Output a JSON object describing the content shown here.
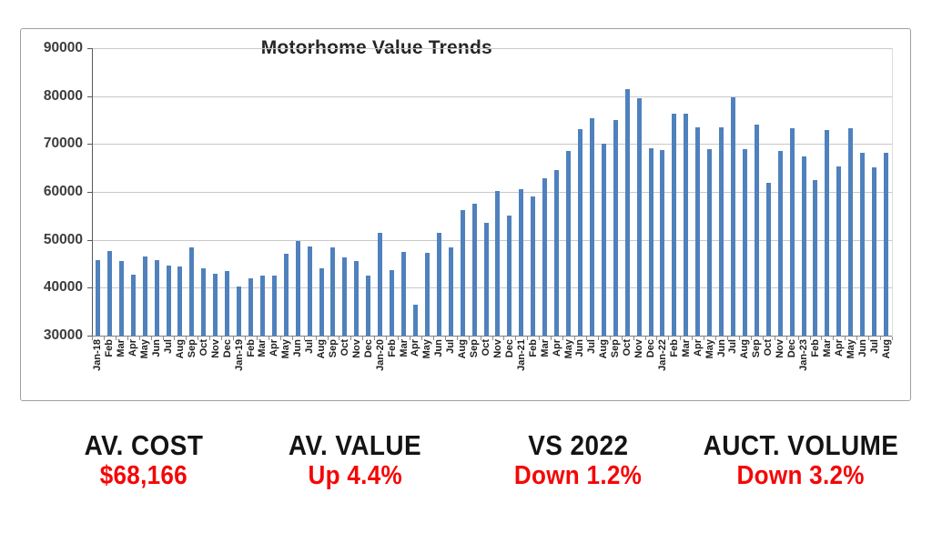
{
  "chart_data": {
    "type": "bar",
    "title": "Motorhome Value Trends",
    "xlabel": "",
    "ylabel": "",
    "ylim": [
      30000,
      90000
    ],
    "ytick_step": 10000,
    "yticks": [
      90000,
      80000,
      70000,
      60000,
      50000,
      40000,
      30000
    ],
    "grid": true,
    "legend_position": "none",
    "bar_color": "#4f81bd",
    "categories": [
      "Jan-18",
      "Feb",
      "Mar",
      "Apr",
      "May",
      "Jun",
      "Jul",
      "Aug",
      "Sep",
      "Oct",
      "Nov",
      "Dec",
      "Jan-19",
      "Feb",
      "Mar",
      "Apr",
      "May",
      "Jun",
      "Jul",
      "Aug",
      "Sep",
      "Oct",
      "Nov",
      "Dec",
      "Jan-20",
      "Feb",
      "Mar",
      "Apr",
      "May",
      "Jun",
      "Jul",
      "Aug",
      "Sep",
      "Oct",
      "Nov",
      "Dec",
      "Jan-21",
      "Feb",
      "Mar",
      "Apr",
      "May",
      "Jun",
      "Jul",
      "Aug",
      "Sep",
      "Oct",
      "Nov",
      "Dec",
      "Jan-22",
      "Feb",
      "Mar",
      "Apr",
      "May",
      "Jun",
      "Jul",
      "Aug",
      "Sep",
      "Oct",
      "Nov",
      "Dec",
      "Jan-23",
      "Feb",
      "Mar",
      "Apr",
      "May",
      "Jun",
      "Jul",
      "Aug"
    ],
    "values": [
      45800,
      47700,
      45600,
      42800,
      46600,
      45800,
      44600,
      44500,
      48400,
      44100,
      42900,
      43400,
      40200,
      42000,
      42600,
      42600,
      47000,
      49800,
      48700,
      44100,
      48500,
      46300,
      45500,
      42600,
      51400,
      43700,
      47500,
      36500,
      47300,
      51500,
      48500,
      56200,
      57600,
      53600,
      60100,
      55000,
      60500,
      59100,
      62900,
      64600,
      68600,
      73100,
      75400,
      70000,
      75000,
      81400,
      79500,
      69100,
      68700,
      76400,
      76400,
      73400,
      68900,
      73500,
      79800,
      68900,
      74000,
      61900,
      68600,
      73200,
      67400,
      62500,
      73000,
      65300,
      73200,
      68200,
      65200,
      68166
    ]
  },
  "stats": [
    {
      "label": "AV. COST",
      "value": "$68,166"
    },
    {
      "label": "AV. VALUE",
      "value": "Up 4.4%"
    },
    {
      "label": "VS 2022",
      "value": "Down 1.2%"
    },
    {
      "label": "AUCT. VOLUME",
      "value": "Down 3.2%"
    }
  ],
  "colors": {
    "bar": "#4f81bd",
    "grid": "#c8c8c8",
    "stat_label": "#141414",
    "stat_value": "#f50707",
    "card_border": "#9f9f9f"
  }
}
